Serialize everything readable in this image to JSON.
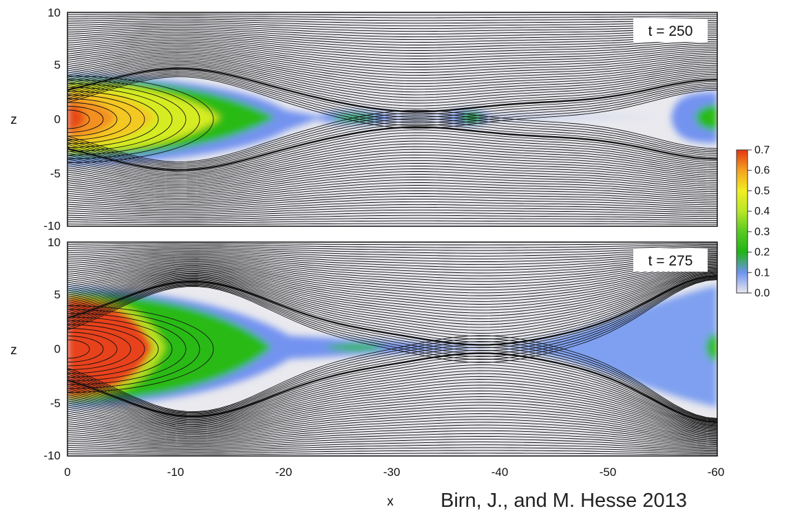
{
  "chart_data": [
    {
      "type": "heatmap",
      "panel_label": "t = 250",
      "xlabel": "",
      "ylabel": "z",
      "xlim": [
        0,
        -60
      ],
      "ylim": [
        -10,
        10
      ],
      "x_ticks": [],
      "y_ticks": [
        "10",
        "5",
        "0",
        "-5",
        "-10"
      ],
      "field_lines": true,
      "regions": [
        {
          "x": [
            0,
            -20
          ],
          "z_half_width": 4.2,
          "peak_value": 0.65
        },
        {
          "x": [
            -22,
            -29
          ],
          "z_half_width": 0.7,
          "peak_value": 0.25
        },
        {
          "x": [
            -34,
            -40
          ],
          "z_half_width": 0.8,
          "peak_value": 0.28
        },
        {
          "x": [
            -53,
            -60
          ],
          "z_half_width": 2.0,
          "peak_value": 0.25
        }
      ]
    },
    {
      "type": "heatmap",
      "panel_label": "t = 275",
      "xlabel": "x",
      "ylabel": "z",
      "xlim": [
        0,
        -60
      ],
      "ylim": [
        -10,
        10
      ],
      "x_ticks": [
        "0",
        "-10",
        "-20",
        "-30",
        "-40",
        "-50",
        "-60"
      ],
      "y_ticks": [
        "10",
        "5",
        "0",
        "-5",
        "-10"
      ],
      "field_lines": true,
      "regions": [
        {
          "x": [
            0,
            -20
          ],
          "z_half_width": 5.5,
          "peak_value": 0.7
        },
        {
          "x": [
            -20,
            -34
          ],
          "z_half_width": 0.8,
          "peak_value": 0.22
        },
        {
          "x": [
            -38,
            -60
          ],
          "z_half_width": 5.0,
          "peak_value": 0.2
        }
      ]
    }
  ],
  "colorbar": {
    "range": [
      0.0,
      0.7
    ],
    "ticks": [
      "0.7",
      "0.6",
      "0.5",
      "0.4",
      "0.3",
      "0.2",
      "0.1",
      "0.0"
    ],
    "colors": [
      "#e8e8ee",
      "#6f93f0",
      "#1fb514",
      "#58cb22",
      "#b8e626",
      "#f2ee22",
      "#f5a21e",
      "#e53614"
    ]
  },
  "credit": "Birn, J., and M. Hesse 2013"
}
